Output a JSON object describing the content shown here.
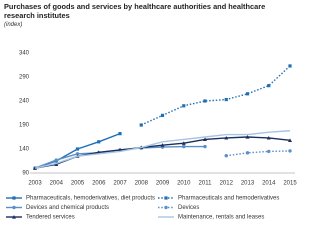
{
  "chart_data": {
    "type": "line",
    "title": "Purchases of goods and services by healthcare authorities and healthcare research institutes",
    "subtitle": "(index)",
    "categories": [
      "2003",
      "2004",
      "2005",
      "2006",
      "2007",
      "2008",
      "2009",
      "2010",
      "2011",
      "2012",
      "2013",
      "2014",
      "2015"
    ],
    "ylim": [
      90,
      340
    ],
    "yticks": [
      90,
      140,
      190,
      240,
      290,
      340
    ],
    "grid": false,
    "series": [
      {
        "name": "Pharmaceuticals, hemoderivatives, diet products",
        "color": "#1f6fb5",
        "line_style": "solid",
        "marker": "square",
        "values": [
          100,
          115,
          140,
          155,
          172,
          null,
          null,
          null,
          null,
          null,
          null,
          null,
          null
        ]
      },
      {
        "name": "Pharmaceuticals and hemoderivatives",
        "color": "#1f6fb5",
        "line_style": "dotted",
        "marker": "square",
        "values": [
          null,
          null,
          null,
          null,
          null,
          190,
          210,
          230,
          240,
          243,
          255,
          272,
          313
        ]
      },
      {
        "name": "Devices and chemical products",
        "color": "#5b8fc7",
        "line_style": "solid",
        "marker": "circle",
        "values": [
          100,
          117,
          130,
          132,
          138,
          142,
          144,
          145,
          145,
          null,
          null,
          null,
          null
        ]
      },
      {
        "name": "Devices",
        "color": "#5b8fc7",
        "line_style": "dotted",
        "marker": "circle",
        "values": [
          null,
          null,
          null,
          null,
          null,
          null,
          null,
          null,
          null,
          126,
          132,
          135,
          136
        ]
      },
      {
        "name": "Tendered services",
        "color": "#1a2f5e",
        "line_style": "solid",
        "marker": "triangle",
        "values": [
          100,
          108,
          125,
          133,
          138,
          143,
          148,
          152,
          160,
          163,
          165,
          163,
          158
        ]
      },
      {
        "name": "Maintenance, rentals and leases",
        "color": "#a8c4e4",
        "line_style": "solid",
        "marker": "none",
        "values": [
          100,
          110,
          125,
          130,
          135,
          143,
          155,
          160,
          165,
          170,
          170,
          175,
          178
        ]
      }
    ]
  }
}
